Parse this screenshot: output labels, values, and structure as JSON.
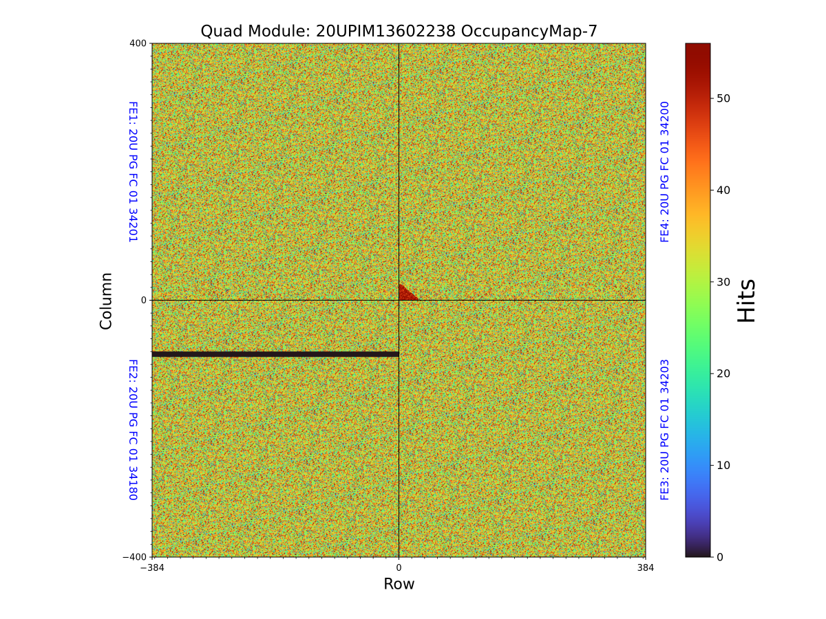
{
  "chart_data": {
    "type": "heatmap",
    "title": "Quad Module: 20UPIM13602238 OccupancyMap-7",
    "xlabel": "Row",
    "ylabel": "Column",
    "xlim": [
      -384,
      384
    ],
    "ylim": [
      -400,
      400
    ],
    "x_ticks": [
      -384,
      0,
      384
    ],
    "x_tick_labels": [
      "−384",
      "0",
      "384"
    ],
    "y_ticks": [
      400,
      0,
      -400
    ],
    "y_tick_labels": [
      "400",
      "0",
      "−400"
    ],
    "colormap": "turbo",
    "colorbar": {
      "label": "Hits",
      "range": [
        0,
        56
      ],
      "ticks": [
        0,
        10,
        20,
        30,
        40,
        50
      ],
      "tick_labels": [
        "0",
        "10",
        "20",
        "30",
        "40",
        "50"
      ]
    },
    "quadrants": [
      {
        "id": "FE1",
        "label": "FE1: 20U PG FC 01 34201",
        "x_range": [
          -384,
          0
        ],
        "y_range": [
          0,
          400
        ],
        "mean_hits": 34
      },
      {
        "id": "FE4",
        "label": "FE4: 20U PG FC 01 34200",
        "x_range": [
          0,
          384
        ],
        "y_range": [
          0,
          400
        ],
        "mean_hits": 34
      },
      {
        "id": "FE2",
        "label": "FE2: 20U PG FC 01 34180",
        "x_range": [
          -384,
          0
        ],
        "y_range": [
          -400,
          0
        ],
        "mean_hits": 34
      },
      {
        "id": "FE3",
        "label": "FE3: 20U PG FC 01 34203",
        "x_range": [
          0,
          384
        ],
        "y_range": [
          -400,
          0
        ],
        "mean_hits": 34
      }
    ],
    "features": [
      {
        "kind": "dead_band",
        "quadrant": "FE2",
        "x_range": [
          -384,
          0
        ],
        "y_range": [
          -88,
          -80
        ],
        "hits": 0
      },
      {
        "kind": "hot_spot",
        "quadrant": "FE4",
        "x_range": [
          0,
          30
        ],
        "y_range": [
          0,
          25
        ],
        "hits": 52
      }
    ]
  }
}
